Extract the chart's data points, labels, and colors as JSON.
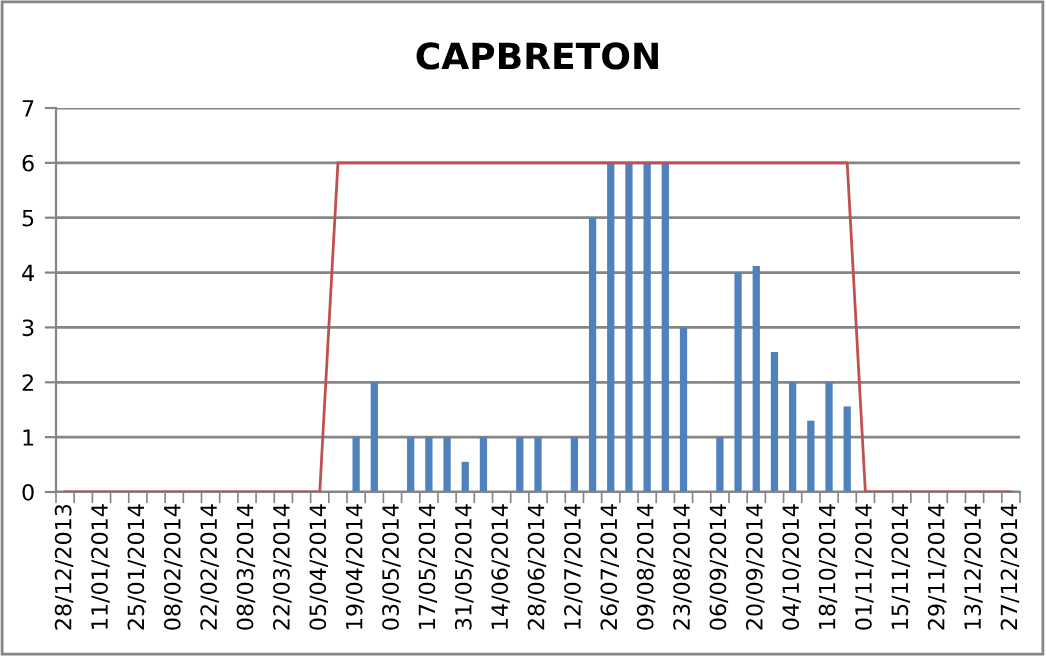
{
  "chart_data": {
    "type": "bar",
    "title": "CAPBRETON",
    "categories": [
      "28/12/2013",
      null,
      "11/01/2014",
      null,
      "25/01/2014",
      null,
      "08/02/2014",
      null,
      "22/02/2014",
      null,
      "08/03/2014",
      null,
      "22/03/2014",
      null,
      "05/04/2014",
      null,
      "19/04/2014",
      null,
      "03/05/2014",
      null,
      "17/05/2014",
      null,
      "31/05/2014",
      null,
      "14/06/2014",
      null,
      "28/06/2014",
      null,
      "12/07/2014",
      null,
      "26/07/2014",
      null,
      "09/08/2014",
      null,
      "23/08/2014",
      null,
      "06/09/2014",
      null,
      "20/09/2014",
      null,
      "04/10/2014",
      null,
      "18/10/2014",
      null,
      "01/11/2014",
      null,
      "15/11/2014",
      null,
      "29/11/2014",
      null,
      "13/12/2014",
      null,
      "27/12/2014"
    ],
    "series": [
      {
        "color": "#4f81bd",
        "values": [
          null,
          null,
          null,
          null,
          null,
          null,
          null,
          null,
          null,
          null,
          null,
          null,
          null,
          null,
          null,
          null,
          1,
          2,
          null,
          1,
          1,
          1,
          0.55,
          1,
          null,
          1,
          1,
          null,
          1,
          5,
          6,
          6,
          6,
          6,
          3,
          null,
          1,
          4,
          4.12,
          2.55,
          2,
          1.3,
          2,
          1.56,
          null,
          null,
          null,
          null,
          null,
          null,
          null,
          null,
          null
        ]
      },
      {
        "type": "line",
        "color": "#c0504d",
        "values": [
          0,
          0,
          0,
          0,
          0,
          0,
          0,
          0,
          0,
          0,
          0,
          0,
          0,
          0,
          0,
          6,
          6,
          6,
          6,
          6,
          6,
          6,
          6,
          6,
          6,
          6,
          6,
          6,
          6,
          6,
          6,
          6,
          6,
          6,
          6,
          6,
          6,
          6,
          6,
          6,
          6,
          6,
          6,
          6,
          0,
          0,
          0,
          0,
          0,
          0,
          0,
          0,
          0
        ]
      }
    ],
    "ylim": [
      0,
      7
    ],
    "yticks": [
      0,
      1,
      2,
      3,
      4,
      5,
      6,
      7
    ],
    "grid": "y",
    "legend": false
  }
}
